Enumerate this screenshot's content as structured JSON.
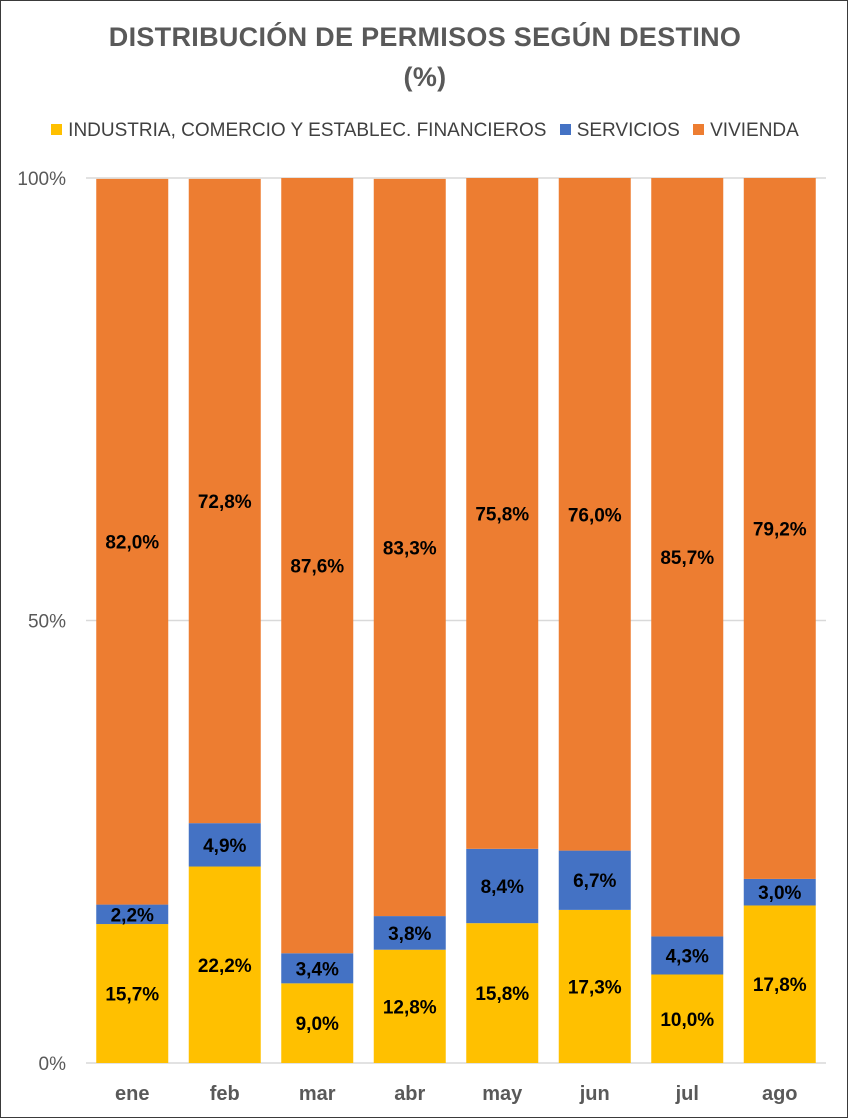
{
  "title_line1": "DISTRIBUCIÓN DE PERMISOS SEGÚN DESTINO",
  "title_line2": "(%)",
  "colors": {
    "industria": "#FFC000",
    "servicios": "#4472C4",
    "vivienda": "#ED7D31",
    "grid": "#d9d9d9",
    "axis_text": "#595959",
    "label_text": "#000000"
  },
  "chart_data": {
    "type": "bar",
    "stacked": "percent",
    "title": "DISTRIBUCIÓN DE PERMISOS SEGÚN DESTINO (%)",
    "categories": [
      "ene",
      "feb",
      "mar",
      "abr",
      "may",
      "jun",
      "jul",
      "ago"
    ],
    "series": [
      {
        "name": "INDUSTRIA, COMERCIO Y ESTABLEC. FINANCIEROS",
        "color": "#FFC000",
        "values": [
          15.7,
          22.2,
          9.0,
          12.8,
          15.8,
          17.3,
          10.0,
          17.8
        ],
        "labels": [
          "15,7%",
          "22,2%",
          "9,0%",
          "12,8%",
          "15,8%",
          "17,3%",
          "10,0%",
          "17,8%"
        ]
      },
      {
        "name": "SERVICIOS",
        "color": "#4472C4",
        "values": [
          2.2,
          4.9,
          3.4,
          3.8,
          8.4,
          6.7,
          4.3,
          3.0
        ],
        "labels": [
          "2,2%",
          "4,9%",
          "3,4%",
          "3,8%",
          "8,4%",
          "6,7%",
          "4,3%",
          "3,0%"
        ]
      },
      {
        "name": "VIVIENDA",
        "color": "#ED7D31",
        "values": [
          82.0,
          72.8,
          87.6,
          83.3,
          75.8,
          76.0,
          85.7,
          79.2
        ],
        "labels": [
          "82,0%",
          "72,8%",
          "87,6%",
          "83,3%",
          "75,8%",
          "76,0%",
          "85,7%",
          "79,2%"
        ]
      }
    ],
    "yticks": [
      "0%",
      "50%",
      "100%"
    ],
    "ylim": [
      0,
      100
    ],
    "legend": "top",
    "grid": true
  }
}
